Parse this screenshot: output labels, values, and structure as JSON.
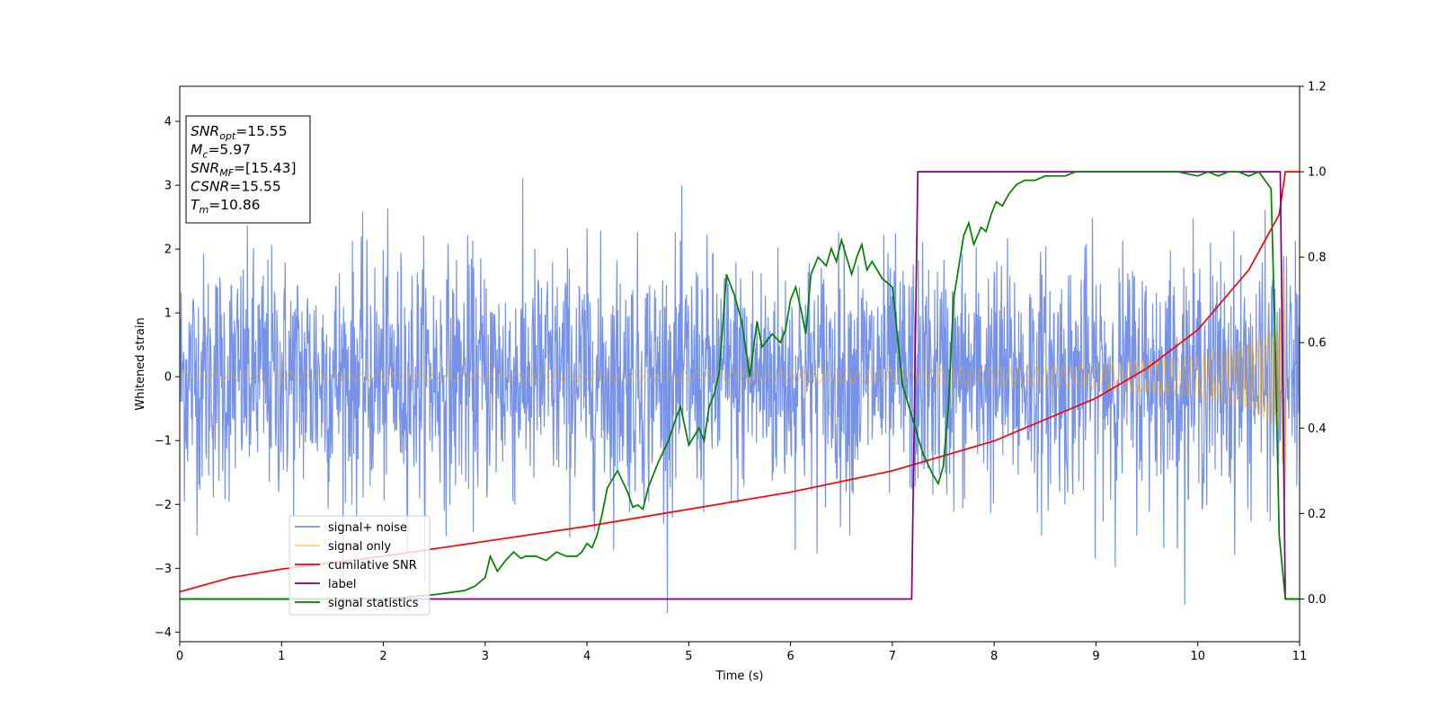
{
  "chart_data": {
    "type": "line",
    "xlabel": "Time (s)",
    "ylabel": "Whitened strain",
    "xlim": [
      0,
      11
    ],
    "ylim_left": [
      -4.15,
      4.55
    ],
    "ylim_right": [
      -0.1,
      1.2
    ],
    "x_ticks": [
      0,
      1,
      2,
      3,
      4,
      5,
      6,
      7,
      8,
      9,
      10,
      11
    ],
    "y_ticks_left": [
      -4,
      -3,
      -2,
      -1,
      0,
      1,
      2,
      3,
      4
    ],
    "y_ticks_right": [
      0.0,
      0.2,
      0.4,
      0.6,
      0.8,
      1.0,
      1.2
    ],
    "grid": false,
    "legend_position": "lower-left",
    "annotation": {
      "lines": [
        {
          "sym": "SNR",
          "sub": "opt",
          "value": "=15.55"
        },
        {
          "sym": "M",
          "sub": "c",
          "value": "=5.97"
        },
        {
          "sym": "SNR",
          "sub": "MF",
          "value": "=[15.43]"
        },
        {
          "sym": "CSNR",
          "sub": "",
          "value": "=15.55"
        },
        {
          "sym": "T",
          "sub": "m",
          "value": "=10.86"
        }
      ]
    },
    "series": [
      {
        "name": "signal+ noise",
        "axis": "left",
        "color": "#4169E1",
        "description_stats": {
          "noise_sigma": 1.0,
          "min": -3.7,
          "max": 4.2
        }
      },
      {
        "name": "signal only",
        "axis": "left",
        "color": "#FFA500",
        "envelope": {
          "x": [
            0,
            2,
            4,
            6,
            7,
            8,
            9,
            10,
            10.5,
            10.8,
            10.86,
            11
          ],
          "amp": [
            0.07,
            0.07,
            0.08,
            0.1,
            0.12,
            0.15,
            0.2,
            0.33,
            0.5,
            0.8,
            1.85,
            0.0
          ]
        }
      },
      {
        "name": "cumilative SNR",
        "axis": "right",
        "color": "#FF0000",
        "x": [
          0,
          0.5,
          1,
          2,
          3,
          4,
          5,
          6,
          7,
          8,
          9,
          9.5,
          10,
          10.5,
          10.8,
          10.86,
          11
        ],
        "y": [
          0.017,
          0.05,
          0.07,
          0.1,
          0.135,
          0.17,
          0.21,
          0.25,
          0.3,
          0.37,
          0.47,
          0.54,
          0.63,
          0.77,
          0.9,
          1.0,
          1.0
        ]
      },
      {
        "name": "label",
        "axis": "right",
        "color": "#800080",
        "x": [
          0,
          7.19,
          7.25,
          10.81,
          10.86,
          11
        ],
        "y": [
          0.0,
          0.0,
          1.0,
          1.0,
          0.0,
          0.0
        ]
      },
      {
        "name": "signal statistics",
        "axis": "right",
        "color": "#008000",
        "x": [
          0,
          1,
          2,
          2.5,
          2.8,
          2.9,
          3.0,
          3.05,
          3.12,
          3.2,
          3.28,
          3.35,
          3.4,
          3.5,
          3.6,
          3.7,
          3.8,
          3.9,
          3.95,
          4.0,
          4.05,
          4.1,
          4.15,
          4.2,
          4.3,
          4.4,
          4.45,
          4.5,
          4.55,
          4.6,
          4.7,
          4.8,
          4.87,
          4.92,
          5.0,
          5.1,
          5.15,
          5.2,
          5.25,
          5.3,
          5.37,
          5.45,
          5.52,
          5.6,
          5.67,
          5.72,
          5.82,
          5.9,
          5.95,
          6.0,
          6.05,
          6.1,
          6.15,
          6.2,
          6.27,
          6.35,
          6.4,
          6.45,
          6.5,
          6.55,
          6.6,
          6.65,
          6.7,
          6.75,
          6.8,
          6.9,
          7.0,
          7.1,
          7.2,
          7.3,
          7.4,
          7.45,
          7.5,
          7.55,
          7.6,
          7.7,
          7.75,
          7.8,
          7.87,
          7.92,
          7.97,
          8.02,
          8.08,
          8.15,
          8.22,
          8.3,
          8.4,
          8.5,
          8.6,
          8.7,
          8.8,
          8.9,
          9.0,
          9.2,
          9.4,
          9.6,
          9.8,
          10.0,
          10.1,
          10.2,
          10.3,
          10.4,
          10.5,
          10.6,
          10.66,
          10.72,
          10.76,
          10.8,
          10.86,
          10.95,
          11
        ],
        "y": [
          0.0,
          0.0,
          0.0,
          0.01,
          0.02,
          0.03,
          0.05,
          0.1,
          0.065,
          0.09,
          0.11,
          0.095,
          0.1,
          0.1,
          0.09,
          0.11,
          0.1,
          0.1,
          0.11,
          0.13,
          0.12,
          0.15,
          0.2,
          0.26,
          0.3,
          0.25,
          0.215,
          0.22,
          0.21,
          0.26,
          0.32,
          0.37,
          0.42,
          0.45,
          0.36,
          0.4,
          0.37,
          0.45,
          0.48,
          0.53,
          0.76,
          0.71,
          0.65,
          0.52,
          0.65,
          0.59,
          0.62,
          0.6,
          0.63,
          0.7,
          0.73,
          0.68,
          0.62,
          0.76,
          0.8,
          0.78,
          0.82,
          0.79,
          0.84,
          0.8,
          0.76,
          0.8,
          0.83,
          0.77,
          0.79,
          0.75,
          0.73,
          0.5,
          0.42,
          0.34,
          0.29,
          0.27,
          0.31,
          0.45,
          0.7,
          0.85,
          0.88,
          0.83,
          0.87,
          0.86,
          0.9,
          0.93,
          0.92,
          0.95,
          0.97,
          0.98,
          0.98,
          0.99,
          0.99,
          0.99,
          1.0,
          1.0,
          1.0,
          1.0,
          1.0,
          1.0,
          1.0,
          0.99,
          1.0,
          0.99,
          1.0,
          1.0,
          0.99,
          1.0,
          0.98,
          0.96,
          0.6,
          0.15,
          0.0,
          0.0,
          0.0
        ]
      }
    ]
  }
}
